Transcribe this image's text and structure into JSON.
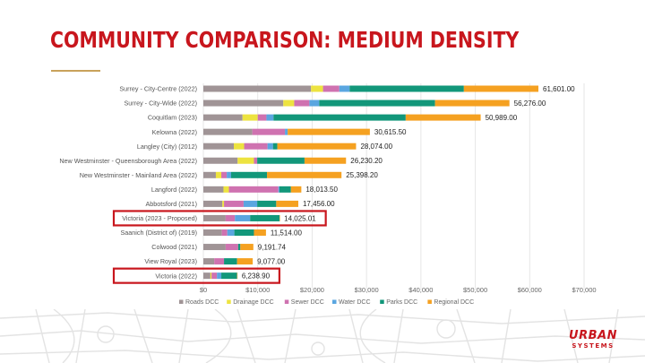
{
  "slide": {
    "title": "COMMUNITY COMPARISON: MEDIUM DENSITY",
    "brand_top": "URBAN",
    "brand_bottom": "SYSTEMS"
  },
  "colors": {
    "title": "#c8161d",
    "accent_rule": "#c9a25b",
    "highlight_box": "#c8161d"
  },
  "chart_data": {
    "type": "bar",
    "orientation": "horizontal",
    "stacked": true,
    "categories": [
      "Surrey - City-Centre (2022)",
      "Surrey - City-Wide (2022)",
      "Coquitlam (2023)",
      "Kelowna (2022)",
      "Langley (City) (2012)",
      "New Westminster - Queensborough Area (2022)",
      "New Westminster - Mainland Area (2022)",
      "Langford (2022)",
      "Abbotsford (2021)",
      "Victoria (2023 - Proposed)",
      "Saanich (District of) (2019)",
      "Colwood (2021)",
      "View Royal (2023)",
      "Victoria (2022)"
    ],
    "totals": [
      "61,601.00",
      "56,276.00",
      "50,989.00",
      "30,615.50",
      "28,074.00",
      "26,230.20",
      "25,398.20",
      "18,013.50",
      "17,456.00",
      "14,025.01",
      "11,514.00",
      "9,191.74",
      "9,077.00",
      "6,238.90"
    ],
    "highlighted": [
      "Victoria (2023 - Proposed)",
      "Victoria (2022)"
    ],
    "series": [
      {
        "name": "Roads DCC",
        "color": "#a09496",
        "values": [
          19800,
          14700,
          7200,
          9000,
          5600,
          6300,
          2300,
          3700,
          3500,
          4100,
          3400,
          4100,
          2000,
          1300
        ]
      },
      {
        "name": "Drainage DCC",
        "color": "#ede340",
        "values": [
          2200,
          2000,
          2800,
          0,
          1900,
          3000,
          1000,
          1000,
          300,
          0,
          0,
          0,
          0,
          200
        ]
      },
      {
        "name": "Sewer DCC",
        "color": "#cf72b0",
        "values": [
          3000,
          2800,
          1600,
          6000,
          4300,
          600,
          1000,
          9100,
          3600,
          1700,
          1000,
          2300,
          1800,
          1000
        ]
      },
      {
        "name": "Water DCC",
        "color": "#5aa6e0",
        "values": [
          1900,
          1800,
          1300,
          500,
          1000,
          0,
          800,
          200,
          2500,
          2800,
          1300,
          0,
          0,
          800
        ]
      },
      {
        "name": "Parks DCC",
        "color": "#12977a",
        "values": [
          21000,
          21300,
          24300,
          0,
          800,
          8700,
          6600,
          2100,
          3500,
          5400,
          3600,
          400,
          2400,
          2900
        ]
      },
      {
        "name": "Regional DCC",
        "color": "#f5a121",
        "values": [
          13701,
          13676,
          13789,
          15115.5,
          14474,
          7630.2,
          13698.2,
          1913.5,
          4056,
          25.01,
          2214,
          2391.74,
          2877,
          38.9
        ]
      }
    ],
    "x_ticks": [
      "$0",
      "$10,000",
      "$20,000",
      "$30,000",
      "$40,000",
      "$50,000",
      "$60,000",
      "$70,000"
    ],
    "xlim": [
      0,
      70000
    ],
    "grid": true,
    "legend_position": "bottom"
  }
}
